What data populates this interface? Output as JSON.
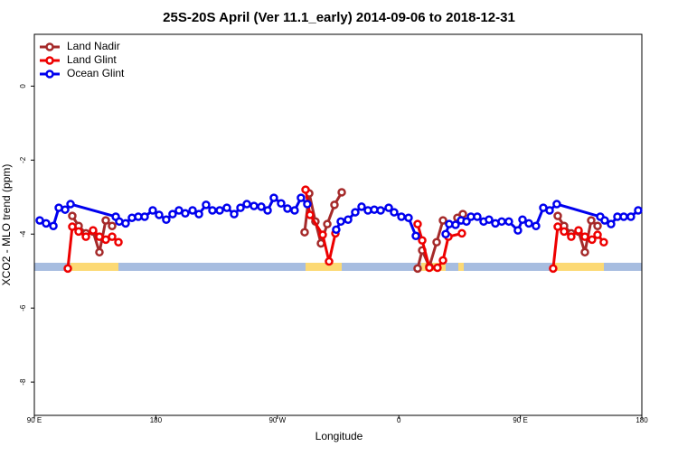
{
  "chart_data": {
    "type": "line",
    "title": "25S-20S April (Ver 11.1_early)   2014-09-06 to 2018-12-31",
    "x_label": "Longitude",
    "y_label": "XCO2 - MLO trend (ppm)",
    "xlim": [
      90,
      540
    ],
    "ylim": [
      -8.9,
      1.4
    ],
    "xticks": [
      {
        "value": 90,
        "label": "90 E"
      },
      180,
      {
        "value": 270,
        "label": "90 W"
      },
      {
        "value": 360,
        "label": "0"
      },
      {
        "value": 450,
        "label": "90 E"
      },
      {
        "value": 540,
        "label": "180"
      }
    ],
    "yticks": [
      0,
      -2,
      -4,
      -6,
      -8
    ],
    "legend": "top-left",
    "series": [
      {
        "name": "Land Nadir",
        "color": "#a52a2a",
        "x": [
          118.1,
          122.8,
          128.2,
          133.5,
          138.2,
          142.9,
          147.6,
          null,
          290.2,
          293.6,
          298.2,
          302.3,
          307.0,
          312.3,
          317.7,
          null,
          373.9,
          377.3,
          382.6,
          388.0,
          392.7,
          null,
          403.4,
          407.4,
          null,
          477.7,
          482.4,
          487.7,
          493.1,
          497.8,
          502.5,
          507.2
        ],
        "values": [
          -3.51,
          -3.78,
          -3.98,
          -3.93,
          -4.49,
          -3.63,
          -3.78,
          null,
          -3.95,
          -2.9,
          -3.66,
          -4.25,
          -3.73,
          -3.21,
          -2.87,
          null,
          -4.93,
          -4.44,
          -4.88,
          -4.22,
          -3.63,
          null,
          -3.56,
          -3.46,
          null,
          -3.51,
          -3.78,
          -3.98,
          -3.93,
          -4.49,
          -3.63,
          -3.78
        ]
      },
      {
        "name": "Land Glint",
        "color": "#ee0000",
        "x": [
          114.8,
          118.1,
          122.8,
          128.2,
          133.5,
          138.2,
          142.9,
          147.6,
          152.3,
          null,
          290.9,
          294.2,
          303.6,
          308.3,
          313.0,
          null,
          373.9,
          377.3,
          382.6,
          388.6,
          392.7,
          396.7,
          406.7,
          null,
          474.3,
          477.7,
          482.4,
          487.7,
          493.1,
          497.8,
          503.1,
          507.2,
          511.8
        ],
        "values": [
          -4.93,
          -3.8,
          -3.93,
          -4.07,
          -3.9,
          -4.07,
          -4.15,
          -4.07,
          -4.22,
          null,
          -2.8,
          -3.48,
          -4.02,
          -4.74,
          -3.98,
          null,
          -3.73,
          -4.17,
          -4.91,
          -4.91,
          -4.71,
          -4.07,
          -3.98,
          null,
          -4.93,
          -3.8,
          -3.93,
          -4.07,
          -3.9,
          -4.07,
          -4.15,
          -4.02,
          -4.22
        ]
      },
      {
        "name": "Ocean Glint",
        "color": "#0000ee",
        "x": [
          94.0,
          98.7,
          104.1,
          108.1,
          112.8,
          116.8,
          150.3,
          152.9,
          157.6,
          162.3,
          167.0,
          171.7,
          177.7,
          182.4,
          187.7,
          192.4,
          197.1,
          201.8,
          207.2,
          211.9,
          217.2,
          221.9,
          227.3,
          232.6,
          238.0,
          242.7,
          247.4,
          252.7,
          258.1,
          262.8,
          267.4,
          272.8,
          277.5,
          282.8,
          287.5,
          292.2,
          null,
          313.6,
          317.0,
          322.4,
          327.7,
          332.4,
          337.1,
          341.8,
          346.5,
          352.5,
          356.5,
          361.9,
          367.2,
          372.6,
          null,
          394.7,
          397.3,
          402.0,
          406.1,
          410.1,
          413.4,
          418.1,
          422.8,
          426.8,
          431.5,
          436.2,
          441.5,
          448.2,
          451.6,
          456.3,
          461.6,
          467.0,
          471.7,
          477.0,
          509.2,
          512.5,
          517.2,
          521.9,
          526.6,
          531.9,
          537.3
        ],
        "values": [
          -3.63,
          -3.71,
          -3.78,
          -3.29,
          -3.34,
          -3.19,
          -3.53,
          -3.66,
          -3.71,
          -3.56,
          -3.53,
          -3.53,
          -3.36,
          -3.48,
          -3.61,
          -3.46,
          -3.36,
          -3.44,
          -3.36,
          -3.46,
          -3.21,
          -3.36,
          -3.36,
          -3.29,
          -3.46,
          -3.29,
          -3.19,
          -3.24,
          -3.26,
          -3.36,
          -3.02,
          -3.17,
          -3.31,
          -3.36,
          -3.02,
          -3.19,
          null,
          -3.88,
          -3.66,
          -3.61,
          -3.41,
          -3.26,
          -3.36,
          -3.34,
          -3.36,
          -3.29,
          -3.41,
          -3.53,
          -3.56,
          -4.05,
          null,
          -4.0,
          -3.73,
          -3.75,
          -3.63,
          -3.66,
          -3.53,
          -3.53,
          -3.66,
          -3.61,
          -3.71,
          -3.66,
          -3.66,
          -3.9,
          -3.61,
          -3.71,
          -3.78,
          -3.29,
          -3.36,
          -3.19,
          -3.53,
          -3.63,
          -3.73,
          -3.53,
          -3.53,
          -3.53,
          -3.36
        ]
      }
    ]
  }
}
